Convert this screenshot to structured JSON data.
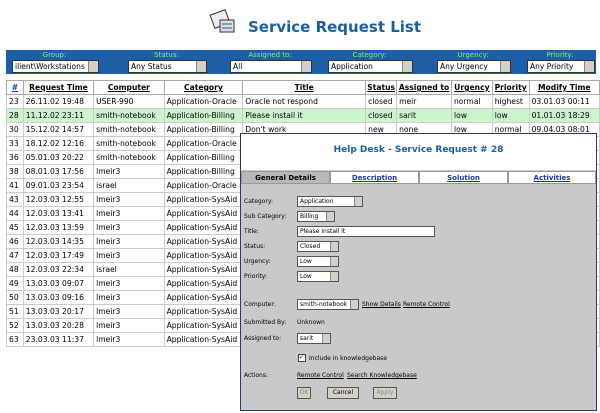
{
  "header": {
    "title": "Service Request List"
  },
  "filters": [
    {
      "label": "Group:",
      "value": "ilient\\Workstations"
    },
    {
      "label": "Status:",
      "value": "Any Status"
    },
    {
      "label": "Assigned to:",
      "value": "All"
    },
    {
      "label": "Category:",
      "value": "Application"
    },
    {
      "label": "Urgency:",
      "value": "Any Urgency"
    },
    {
      "label": "Priority:",
      "value": "Any Priority"
    }
  ],
  "table": {
    "columns": [
      "#",
      "Request Time",
      "Computer",
      "Category",
      "Title",
      "Status",
      "Assigned to",
      "Urgency",
      "Priority",
      "Modify Time"
    ],
    "rows": [
      [
        "23",
        "26.11.02 19:48",
        "USER-990",
        "Application-Oracle",
        "Oracle not respond",
        "closed",
        "meir",
        "normal",
        "highest",
        "03.01.03 00:11"
      ],
      [
        "28",
        "11.12.02 23:11",
        "smith-notebook",
        "Application-Billing",
        "Please install it",
        "closed",
        "sarit",
        "low",
        "low",
        "01.01.03 18:29"
      ],
      [
        "30",
        "15.12.02 14:57",
        "smith-notebook",
        "Application-Billing",
        "Don't work",
        "new",
        "none",
        "low",
        "normal",
        "09.04.03 08:01"
      ],
      [
        "33",
        "18.12.02 12:16",
        "smith-notebook",
        "Application-Oracle"
      ],
      [
        "36",
        "05.01.03 20:22",
        "smith-notebook",
        "Application-Billing"
      ],
      [
        "38",
        "08.01.03 17:56",
        "lmeir3",
        "Application-Billing"
      ],
      [
        "41",
        "09.01.03 23:54",
        "israel",
        "Application-Oracle"
      ],
      [
        "43",
        "12.03.03 12:55",
        "lmeir3",
        "Application-SysAid"
      ],
      [
        "44",
        "12.03.03 13:41",
        "lmeir3",
        "Application-SysAid"
      ],
      [
        "45",
        "12.03.03 13:59",
        "lmeir3",
        "Application-SysAid"
      ],
      [
        "46",
        "12.03.03 14:35",
        "lmeir3",
        "Application-SysAid"
      ],
      [
        "47",
        "12.03.03 17:49",
        "lmeir3",
        "Application-SysAid"
      ],
      [
        "48",
        "12.03.03 22:34",
        "israel",
        "Application-SysAid"
      ],
      [
        "49",
        "13.03.03 09:07",
        "lmeir3",
        "Application-SysAid"
      ],
      [
        "50",
        "13.03.03 09:16",
        "lmeir3",
        "Application-SysAid"
      ],
      [
        "51",
        "13.03.03 20:17",
        "lmeir3",
        "Application-SysAid"
      ],
      [
        "52",
        "13.03.03 20:28",
        "lmeir3",
        "Application-SysAid"
      ],
      [
        "63",
        "23.03.03 11:37",
        "lmeir3",
        "Application-SysAid"
      ]
    ]
  },
  "popup": {
    "title": "Help Desk - Service Request # 28",
    "tabs": [
      "General Details",
      "Description",
      "Solution",
      "Activities"
    ],
    "fields": [
      {
        "label": "Category:",
        "value": "Application"
      },
      {
        "label": "Sub Category:",
        "value": "Billing"
      },
      {
        "label": "Title:",
        "value": "Please install it"
      },
      {
        "label": "Status:",
        "value": "Closed"
      },
      {
        "label": "Urgency:",
        "value": "Low"
      },
      {
        "label": "Priority:",
        "value": "Low"
      },
      {
        "label": "Computer:",
        "value": "smith-notebook"
      },
      {
        "label": "Submitted By:",
        "value": "Unknown"
      },
      {
        "label": "Assigned to:",
        "value": "sarit"
      }
    ],
    "computer_links": [
      "Show Details",
      "Remote Control"
    ],
    "checkbox": "Include in knowledgebase",
    "actions": {
      "label": "Actions:",
      "links": [
        "Remote Control",
        "Search Knowledgebase"
      ]
    },
    "buttons": [
      "OK",
      "Cancel",
      "Apply"
    ]
  }
}
